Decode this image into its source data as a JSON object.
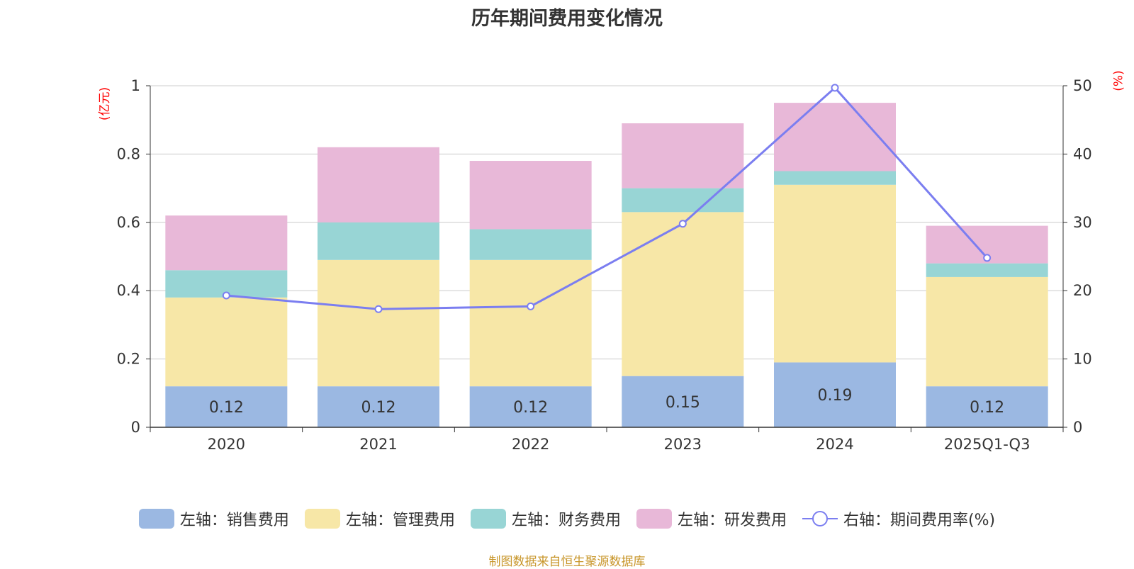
{
  "chart_data": {
    "type": "bar",
    "title": "历年期间费用变化情况",
    "left_unit": "(亿元)",
    "right_unit": "(%)",
    "categories": [
      "2020",
      "2021",
      "2022",
      "2023",
      "2024",
      "2025Q1-Q3"
    ],
    "left_axis": {
      "ylim": [
        0,
        1
      ],
      "ticks": [
        "0",
        "0.2",
        "0.4",
        "0.6",
        "0.8",
        "1"
      ]
    },
    "right_axis": {
      "ylim": [
        0,
        50
      ],
      "ticks": [
        "0",
        "10",
        "20",
        "30",
        "40",
        "50"
      ]
    },
    "series": [
      {
        "name": "左轴：销售费用",
        "type": "bar",
        "axis": "left",
        "color": "#9bb8e2",
        "values": [
          0.12,
          0.12,
          0.12,
          0.15,
          0.19,
          0.12
        ],
        "labels": [
          "0.12",
          "0.12",
          "0.12",
          "0.15",
          "0.19",
          "0.12"
        ]
      },
      {
        "name": "左轴：管理费用",
        "type": "bar",
        "axis": "left",
        "color": "#f7e7a7",
        "values": [
          0.26,
          0.37,
          0.37,
          0.48,
          0.52,
          0.32
        ]
      },
      {
        "name": "左轴：财务费用",
        "type": "bar",
        "axis": "left",
        "color": "#98d5d5",
        "values": [
          0.08,
          0.11,
          0.09,
          0.07,
          0.04,
          0.04
        ]
      },
      {
        "name": "左轴：研发费用",
        "type": "bar",
        "axis": "left",
        "color": "#e8b8d8",
        "values": [
          0.16,
          0.22,
          0.2,
          0.19,
          0.2,
          0.11
        ]
      },
      {
        "name": "右轴：期间费用率(%)",
        "type": "line",
        "axis": "right",
        "color": "#7b7ef0",
        "values": [
          19.3,
          17.3,
          17.7,
          29.8,
          49.7,
          24.8
        ]
      }
    ]
  },
  "source": "制图数据来自恒生聚源数据库"
}
